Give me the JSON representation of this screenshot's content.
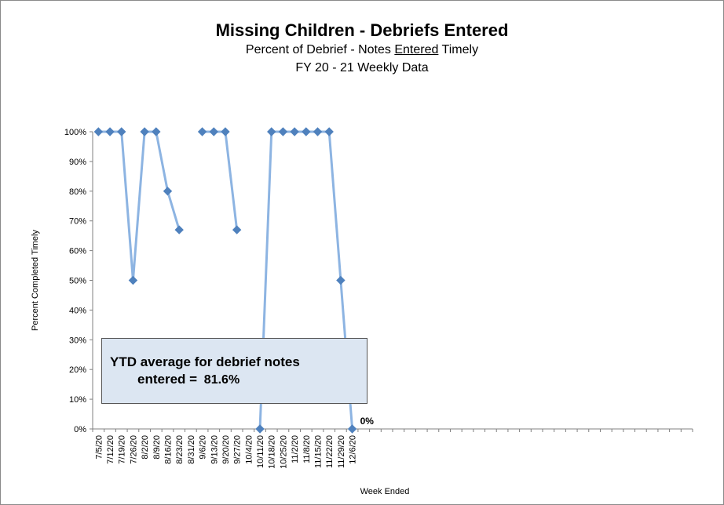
{
  "chart_data": {
    "type": "line",
    "title": "Missing Children - Debriefs Entered",
    "subtitle_parts": [
      "Percent of Debrief - Notes ",
      "Entered",
      " Timely"
    ],
    "subtitle2": "FY 20 - 21  Weekly Data",
    "xlabel": "Week Ended",
    "ylabel": "Percent Completed Timely",
    "ylim": [
      0,
      100
    ],
    "yticks": [
      "0%",
      "10%",
      "20%",
      "30%",
      "40%",
      "50%",
      "60%",
      "70%",
      "80%",
      "90%",
      "100%"
    ],
    "categories": [
      "7/5/20",
      "7/12/20",
      "7/19/20",
      "7/26/20",
      "8/2/20",
      "8/9/20",
      "8/16/20",
      "8/23/20",
      "8/31/20",
      "9/6/20",
      "9/13/20",
      "9/20/20",
      "9/27/20",
      "10/4/20",
      "10/11/20",
      "10/18/20",
      "10/25/20",
      "11/2/20",
      "11/8/20",
      "11/15/20",
      "11/22/20",
      "11/29/20",
      "12/6/20"
    ],
    "total_slots": 52,
    "series": [
      {
        "values": [
          100,
          100,
          100,
          50,
          100,
          100,
          80,
          67,
          null,
          100,
          100,
          100,
          67,
          null,
          0,
          100,
          100,
          100,
          100,
          100,
          100,
          50,
          0
        ]
      }
    ],
    "grid": false,
    "legend": "none",
    "colors": {
      "line": "#8db4e2",
      "marker": "#4f81bd"
    },
    "annotations": [
      {
        "text": "0%",
        "category": "12/6/20",
        "value": 0
      }
    ],
    "callout": {
      "line1": "YTD average for debrief notes",
      "line2": "entered =",
      "value": "81.6%"
    }
  }
}
